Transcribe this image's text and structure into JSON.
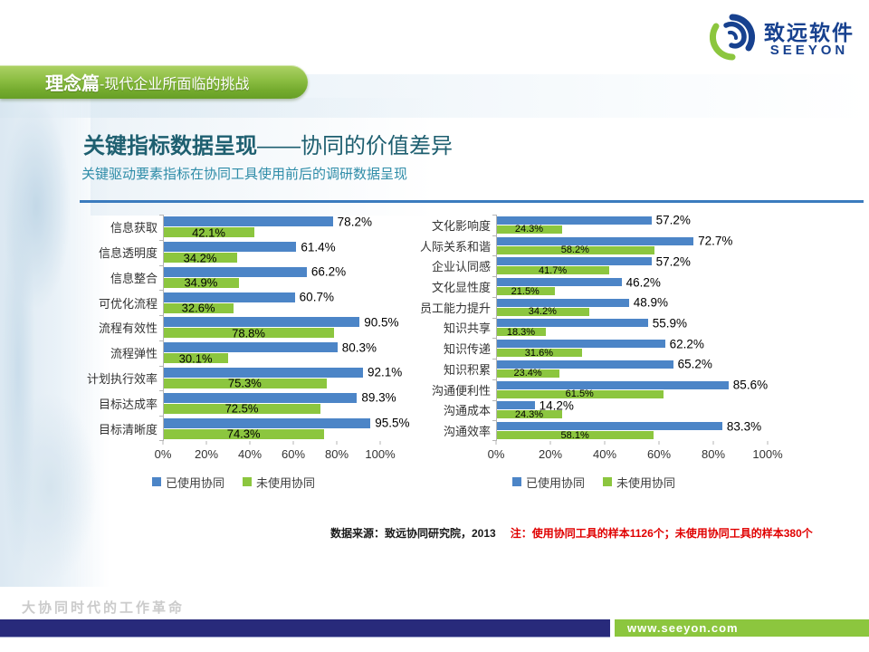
{
  "header": {
    "banner_title": "理念篇",
    "banner_subtitle": "-现代企业所面临的挑战",
    "logo_cn": "致远软件",
    "logo_en": "SEEYON"
  },
  "title": {
    "main_bold": "关键指标数据呈现",
    "main_rest": "——协同的价值差异",
    "subtitle": "关键驱动要素指标在协同工具使用前后的调研数据呈现"
  },
  "colors": {
    "used_blue": "#4c85c7",
    "unused_green": "#8cc63f",
    "banner_green": "#8bbd42",
    "footer_navy": "#282a7b",
    "footer_green": "#8cc63e",
    "title_teal": "#1e5f70",
    "subtitle_teal": "#2e8ca8",
    "divider_blue": "#3b7bbe",
    "note_red": "#e00000"
  },
  "chart_data": [
    {
      "type": "bar",
      "orientation": "horizontal",
      "title": "",
      "categories": [
        "信息获取",
        "信息透明度",
        "信息整合",
        "可优化流程",
        "流程有效性",
        "流程弹性",
        "计划执行效率",
        "目标达成率",
        "目标清晰度"
      ],
      "series": [
        {
          "name": "已使用协同",
          "color": "#4c85c7",
          "values": [
            78.2,
            61.4,
            66.2,
            60.7,
            90.5,
            80.3,
            92.1,
            89.3,
            95.5
          ]
        },
        {
          "name": "未使用协同",
          "color": "#8cc63f",
          "values": [
            42.1,
            34.2,
            34.9,
            32.6,
            78.8,
            30.1,
            75.3,
            72.5,
            74.3
          ]
        }
      ],
      "xlim": [
        0,
        100
      ],
      "ticks": [
        "0%",
        "20%",
        "40%",
        "60%",
        "80%",
        "100%"
      ],
      "value_suffix": "%",
      "grid": false,
      "legend_position": "bottom"
    },
    {
      "type": "bar",
      "orientation": "horizontal",
      "title": "",
      "categories": [
        "文化影响度",
        "人际关系和谐",
        "企业认同感",
        "文化显性度",
        "员工能力提升",
        "知识共享",
        "知识传递",
        "知识积累",
        "沟通便利性",
        "沟通成本",
        "沟通效率"
      ],
      "series": [
        {
          "name": "已使用协同",
          "color": "#4c85c7",
          "values": [
            57.2,
            72.7,
            57.2,
            46.2,
            48.9,
            55.9,
            62.2,
            65.2,
            85.6,
            14.2,
            83.3
          ]
        },
        {
          "name": "未使用协同",
          "color": "#8cc63f",
          "values": [
            24.3,
            58.2,
            41.7,
            21.5,
            34.2,
            18.3,
            31.6,
            23.4,
            61.5,
            24.3,
            58.1
          ]
        }
      ],
      "xlim": [
        0,
        100
      ],
      "ticks": [
        "0%",
        "20%",
        "40%",
        "60%",
        "80%",
        "100%"
      ],
      "value_suffix": "%",
      "grid": false,
      "legend_position": "bottom"
    }
  ],
  "footnote": {
    "source": "数据来源：致远协同研究院，2013",
    "note": "注：使用协同工具的样本1126个；未使用协同工具的样本380个"
  },
  "footer": {
    "watermark": "大协同时代的工作革命",
    "url": "www.seeyon.com"
  }
}
